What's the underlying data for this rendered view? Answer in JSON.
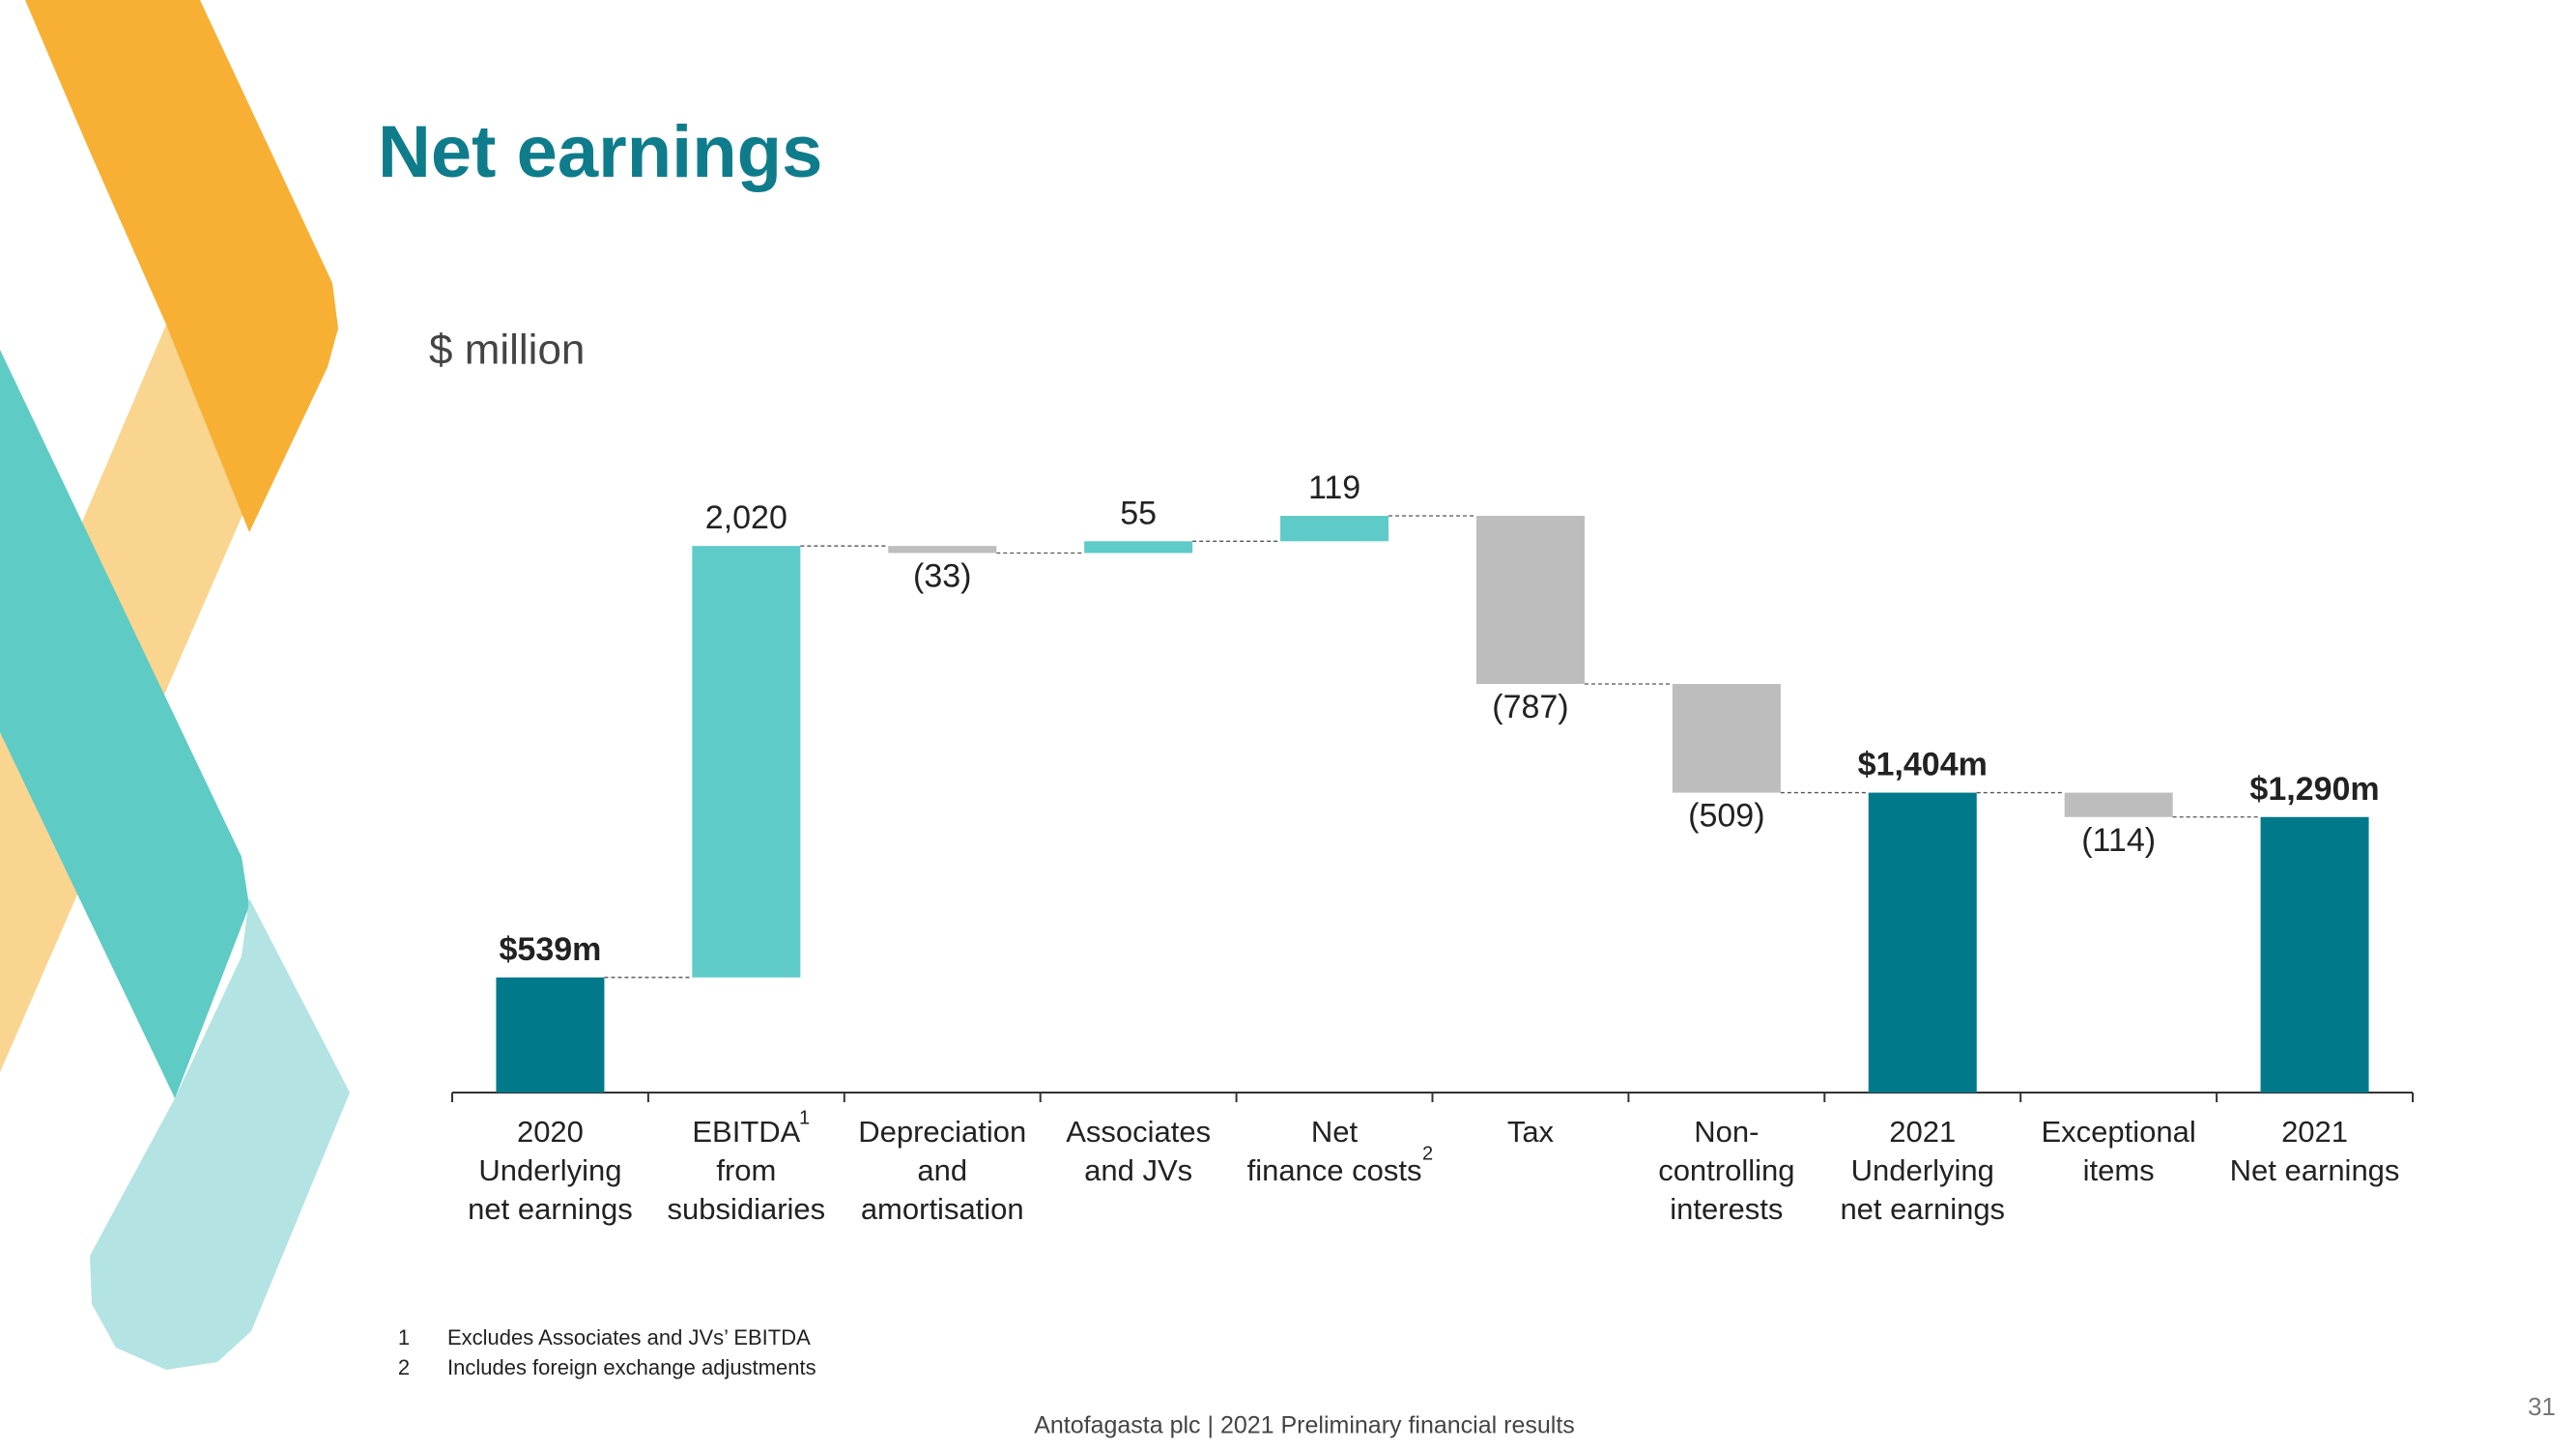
{
  "chart_data": {
    "type": "waterfall",
    "title": "Net earnings",
    "subtitle": "$ million",
    "categories": [
      [
        "2020",
        "Underlying",
        "net earnings"
      ],
      [
        "EBITDA",
        "from",
        "subsidiaries"
      ],
      [
        "Depreciation",
        "and",
        "amortisation"
      ],
      [
        "Associates",
        "and JVs"
      ],
      [
        "Net",
        "finance costs"
      ],
      [
        "Tax"
      ],
      [
        "Non-",
        "controlling",
        "interests"
      ],
      [
        "2021",
        "Underlying",
        "net earnings"
      ],
      [
        "Exceptional",
        "items"
      ],
      [
        "2021",
        "Net earnings"
      ]
    ],
    "values": [
      539,
      2020,
      -33,
      55,
      119,
      -787,
      -509,
      1404,
      -114,
      1290
    ],
    "value_labels": [
      "$539m",
      "2,020",
      "(33)",
      "55",
      "119",
      "(787)",
      "(509)",
      "$1,404m",
      "(114)",
      "$1,290m"
    ],
    "kinds": [
      "total",
      "delta",
      "delta",
      "delta",
      "delta",
      "delta",
      "delta",
      "total",
      "delta",
      "total"
    ],
    "colors": {
      "total": "#007a8a",
      "increase": "#5ecbc8",
      "decrease": "#bdbdbd"
    },
    "footnotes": [
      {
        "marker": "1",
        "text": "Excludes Associates and JVs’ EBITDA"
      },
      {
        "marker": "2",
        "text": "Includes foreign exchange adjustments"
      }
    ],
    "footer": "Antofagasta plc | 2021 Preliminary financial results",
    "page_number": "31"
  }
}
